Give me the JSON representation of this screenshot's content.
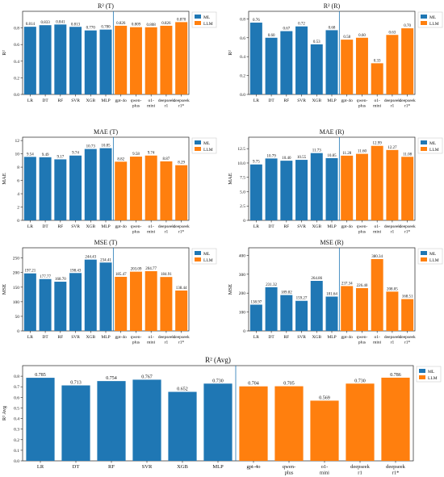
{
  "colors": {
    "ML": "#1f77b4",
    "LLM": "#ff7f0e",
    "divider": "#1f77b4"
  },
  "legend": {
    "ml_label": "ML",
    "llm_label": "LLM",
    "position": "top-right"
  },
  "chart_data": [
    {
      "type": "bar",
      "title": "R² (T)",
      "ylabel": "R²",
      "categories": [
        "LR",
        "DT",
        "RF",
        "SVR",
        "XGB",
        "MLP",
        "gpt-4o",
        "qwen-\nplus",
        "o1-\nmini",
        "deepseek\nr1",
        "deepseek\nr1*"
      ],
      "groups": [
        "ML",
        "ML",
        "ML",
        "ML",
        "ML",
        "ML",
        "LLM",
        "LLM",
        "LLM",
        "LLM",
        "LLM"
      ],
      "values": [
        0.814,
        0.833,
        0.841,
        0.813,
        0.77,
        0.78,
        0.826,
        0.809,
        0.808,
        0.826,
        0.87
      ],
      "labels": [
        "0.814",
        "0.833",
        "0.841",
        "0.813",
        "0.770",
        "0.780",
        "0.826",
        "0.809",
        "0.808",
        "0.826",
        "0.870"
      ],
      "ylim": [
        0,
        1.0
      ],
      "yticks": [
        0.0,
        0.2,
        0.4,
        0.6,
        0.8
      ],
      "ytick_labels": [
        "0.0",
        "0.2",
        "0.4",
        "0.6",
        "0.8"
      ]
    },
    {
      "type": "bar",
      "title": "R² (R)",
      "ylabel": "R²",
      "categories": [
        "LR",
        "DT",
        "RF",
        "SVR",
        "XGB",
        "MLP",
        "gpt-4o",
        "qwen-\nplus",
        "o1-\nmini",
        "deepseek\nr1",
        "deepseek\nr1*"
      ],
      "groups": [
        "ML",
        "ML",
        "ML",
        "ML",
        "ML",
        "ML",
        "LLM",
        "LLM",
        "LLM",
        "LLM",
        "LLM"
      ],
      "values": [
        0.76,
        0.6,
        0.67,
        0.72,
        0.53,
        0.68,
        0.58,
        0.6,
        0.33,
        0.63,
        0.7
      ],
      "labels": [
        "0.76",
        "0.60",
        "0.67",
        "0.72",
        "0.53",
        "0.68",
        "0.58",
        "0.60",
        "0.33",
        "0.63",
        "0.70"
      ],
      "ylim": [
        0,
        0.88
      ],
      "yticks": [
        0.0,
        0.2,
        0.4,
        0.6,
        0.8
      ],
      "ytick_labels": [
        "0.0",
        "0.2",
        "0.4",
        "0.6",
        "0.8"
      ]
    },
    {
      "type": "bar",
      "title": "MAE (T)",
      "ylabel": "MAE",
      "categories": [
        "LR",
        "DT",
        "RF",
        "SVR",
        "XGB",
        "MLP",
        "gpt-4o",
        "qwen-\nplus",
        "o1-\nmini",
        "deepseek\nr1",
        "deepseek\nr1*"
      ],
      "groups": [
        "ML",
        "ML",
        "ML",
        "ML",
        "ML",
        "ML",
        "LLM",
        "LLM",
        "LLM",
        "LLM",
        "LLM"
      ],
      "values": [
        9.54,
        9.49,
        9.17,
        9.74,
        10.73,
        10.85,
        8.82,
        9.58,
        9.74,
        8.87,
        8.29
      ],
      "labels": [
        "9.54",
        "9.49",
        "9.17",
        "9.74",
        "10.73",
        "10.85",
        "8.82",
        "9.58",
        "9.74",
        "8.87",
        "8.29"
      ],
      "ylim": [
        0,
        12.5
      ],
      "yticks": [
        0,
        2,
        4,
        6,
        8,
        10,
        12
      ],
      "ytick_labels": [
        "0",
        "2",
        "4",
        "6",
        "8",
        "10",
        "12"
      ]
    },
    {
      "type": "bar",
      "title": "MAE (R)",
      "ylabel": "MAE",
      "categories": [
        "LR",
        "DT",
        "RF",
        "SVR",
        "XGB",
        "MLP",
        "gpt-4o",
        "qwen-\nplus",
        "o1-\nmini",
        "deepseek\nr1",
        "deepseek\nr1*"
      ],
      "groups": [
        "ML",
        "ML",
        "ML",
        "ML",
        "ML",
        "ML",
        "LLM",
        "LLM",
        "LLM",
        "LLM",
        "LLM"
      ],
      "values": [
        9.75,
        10.79,
        10.4,
        10.55,
        11.73,
        10.85,
        11.28,
        11.6,
        12.99,
        12.27,
        11.08
      ],
      "labels": [
        "9.75",
        "10.79",
        "10.40",
        "10.55",
        "11.73",
        "10.85",
        "11.28",
        "11.60",
        "12.99",
        "12.27",
        "11.08"
      ],
      "ylim": [
        0,
        14.5
      ],
      "yticks": [
        0,
        2.5,
        5.0,
        7.5,
        10.0,
        12.5
      ],
      "ytick_labels": [
        "0",
        "2.5",
        "5.0",
        "7.5",
        "10.0",
        "12.5"
      ]
    },
    {
      "type": "bar",
      "title": "MSE (T)",
      "ylabel": "MSE",
      "categories": [
        "LR",
        "DT",
        "RF",
        "SVR",
        "XGB",
        "MLP",
        "gpt-4o",
        "qwen-\nplus",
        "o1-\nmini",
        "deepseek\nr1",
        "deepseek\nr1*"
      ],
      "groups": [
        "ML",
        "ML",
        "ML",
        "ML",
        "ML",
        "ML",
        "LLM",
        "LLM",
        "LLM",
        "LLM",
        "LLM"
      ],
      "values": [
        197.21,
        177.77,
        168.7,
        198.43,
        244.43,
        234.41,
        185.47,
        203.09,
        204.77,
        184.91,
        138.44
      ],
      "labels": [
        "197.21",
        "177.77",
        "168.70",
        "198.43",
        "244.43",
        "234.41",
        "185.47",
        "203.09",
        "204.77",
        "184.91",
        "138.44"
      ],
      "ylim": [
        0,
        285
      ],
      "yticks": [
        0,
        50,
        100,
        150,
        200,
        250
      ],
      "ytick_labels": [
        "0",
        "50",
        "100",
        "150",
        "200",
        "250"
      ]
    },
    {
      "type": "bar",
      "title": "MSE (R)",
      "ylabel": "MSE",
      "categories": [
        "LR",
        "DT",
        "RF",
        "SVR",
        "XGB",
        "MLP",
        "gpt-4o",
        "qwen-\nplus",
        "o1-\nmini",
        "deepseek\nr1",
        "deepseek\nr1*"
      ],
      "groups": [
        "ML",
        "ML",
        "ML",
        "ML",
        "ML",
        "ML",
        "LLM",
        "LLM",
        "LLM",
        "LLM",
        "LLM"
      ],
      "values": [
        138.97,
        231.32,
        189.82,
        159.27,
        264.86,
        181.64,
        237.34,
        226.4,
        380.34,
        208.05,
        168.51
      ],
      "labels": [
        "138.97",
        "231.32",
        "189.82",
        "159.27",
        "264.86",
        "181.64",
        "237.34",
        "226.40",
        "380.34",
        "208.05",
        "168.51"
      ],
      "ylim": [
        0,
        440
      ],
      "yticks": [
        0,
        100,
        200,
        300,
        400
      ],
      "ytick_labels": [
        "0",
        "100",
        "200",
        "300",
        "400"
      ]
    },
    {
      "type": "bar",
      "title": "R² (Avg)",
      "ylabel": "R² Avg",
      "categories": [
        "LR",
        "DT",
        "RF",
        "SVR",
        "XGB",
        "MLP",
        "gpt-4o",
        "qwen-\nplus",
        "o1-\nmini",
        "deepseek\nr1",
        "deepseek\nr1*"
      ],
      "groups": [
        "ML",
        "ML",
        "ML",
        "ML",
        "ML",
        "ML",
        "LLM",
        "LLM",
        "LLM",
        "LLM",
        "LLM"
      ],
      "values": [
        0.785,
        0.713,
        0.754,
        0.767,
        0.652,
        0.73,
        0.704,
        0.705,
        0.569,
        0.73,
        0.786
      ],
      "labels": [
        "0.785",
        "0.713",
        "0.754",
        "0.767",
        "0.652",
        "0.730",
        "0.704",
        "0.705",
        "0.569",
        "0.730",
        "0.786"
      ],
      "ylim": [
        0,
        0.9
      ],
      "yticks": [
        0.0,
        0.1,
        0.2,
        0.3,
        0.4,
        0.5,
        0.6,
        0.7,
        0.8
      ],
      "ytick_labels": [
        "0.0",
        "0.1",
        "0.2",
        "0.3",
        "0.4",
        "0.5",
        "0.6",
        "0.7",
        "0.8"
      ]
    }
  ]
}
